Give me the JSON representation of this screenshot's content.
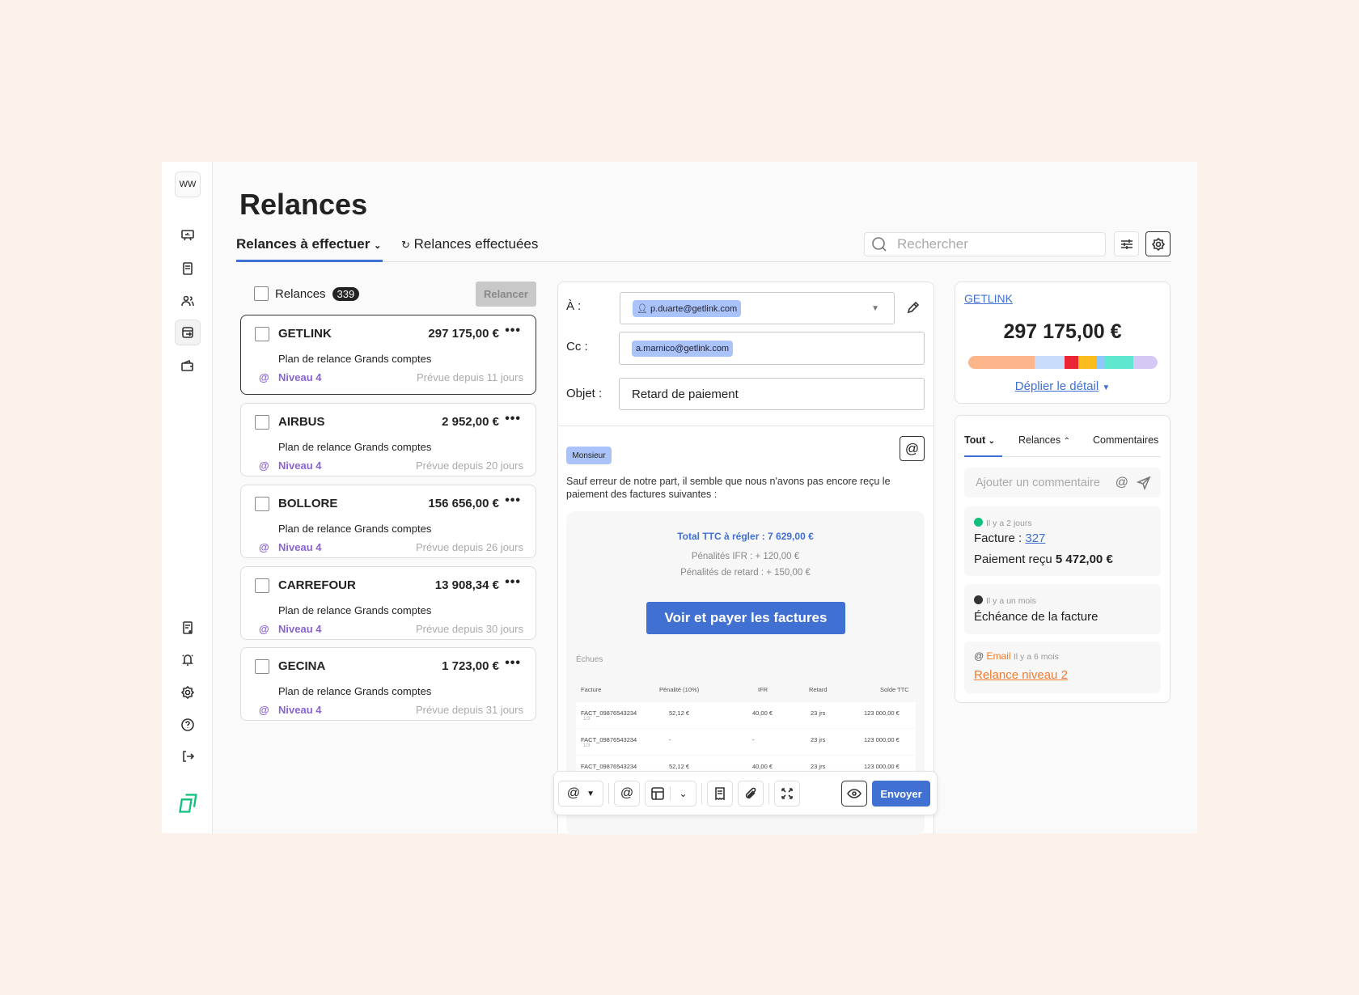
{
  "sidebar": {
    "workspace": "WW",
    "items": [
      "dashboard",
      "invoices",
      "customers",
      "reminders",
      "wallet"
    ],
    "bottom_items": [
      "notes",
      "notifications",
      "settings",
      "help",
      "logout"
    ]
  },
  "header": {
    "title": "Relances",
    "tabs": [
      {
        "label": "Relances à effectuer"
      },
      {
        "label": "Relances effectuées"
      }
    ],
    "search_placeholder": "Rechercher"
  },
  "list": {
    "header_label": "Relances",
    "count": "339",
    "relancer_label": "Relancer",
    "cards": [
      {
        "name": "GETLINK",
        "amount": "297 175,00 €",
        "plan": "Plan de relance Grands comptes",
        "level": "Niveau 4",
        "due": "Prévue depuis 11 jours"
      },
      {
        "name": "AIRBUS",
        "amount": "2 952,00 €",
        "plan": "Plan de relance Grands comptes",
        "level": "Niveau 4",
        "due": "Prévue depuis 20 jours"
      },
      {
        "name": "BOLLORE",
        "amount": "156 656,00 €",
        "plan": "Plan de relance Grands comptes",
        "level": "Niveau 4",
        "due": "Prévue depuis 26 jours"
      },
      {
        "name": "CARREFOUR",
        "amount": "13 908,34 €",
        "plan": "Plan de relance Grands comptes",
        "level": "Niveau 4",
        "due": "Prévue depuis 30 jours"
      },
      {
        "name": "GECINA",
        "amount": "1 723,00 €",
        "plan": "Plan de relance Grands comptes",
        "level": "Niveau 4",
        "due": "Prévue depuis 31 jours"
      }
    ]
  },
  "email": {
    "to_label": "À :",
    "to": "p.duarte@getlink.com",
    "cc_label": "Cc :",
    "cc": "a.marnico@getlink.com",
    "subject_label": "Objet :",
    "subject": "Retard de paiement",
    "salutation": "Monsieur",
    "body": "Sauf erreur de notre part, il semble que nous n'avons pas encore reçu le paiement des factures suivantes :",
    "total": "Total TTC à régler : 7 629,00 €",
    "penalty_ifr": "Pénalités IFR : + 120,00 €",
    "penalty_late": "Pénalités de retard : + 150,00 €",
    "pay_button": "Voir et payer les factures",
    "section": "Échues",
    "columns": [
      "Facture",
      "Pénalité (10%)",
      "IFR",
      "Retard",
      "Solde TTC"
    ],
    "rows": [
      {
        "invoice": "FACT_09876543234",
        "part": "1/3",
        "penalty": "52,12 €",
        "ifr": "40,00 €",
        "delay": "23 jrs",
        "balance": "123 000,00 €"
      },
      {
        "invoice": "FACT_09876543234",
        "part": "1/3",
        "penalty": "-",
        "ifr": "-",
        "delay": "23 jrs",
        "balance": "123 000,00 €"
      },
      {
        "invoice": "FACT_09876543234",
        "part": "",
        "penalty": "52,12 €",
        "ifr": "40,00 €",
        "delay": "23 jrs",
        "balance": "123 000,00 €"
      }
    ],
    "send_label": "Envoyer"
  },
  "summary": {
    "client": "GETLINK",
    "amount": "297 175,00 €",
    "expand_label": "Déplier le détail",
    "bar": [
      {
        "color": "#fdb58c",
        "share": 0.35
      },
      {
        "color": "#c9dcfb",
        "share": 0.16
      },
      {
        "color": "#ec2534",
        "share": 0.07
      },
      {
        "color": "#fbbd1e",
        "share": 0.1
      },
      {
        "color": "#8cc7fb",
        "share": 0.04
      },
      {
        "color": "#5fe8cf",
        "share": 0.15
      },
      {
        "color": "#d4c9f5",
        "share": 0.13
      }
    ]
  },
  "activity": {
    "tabs": [
      "Tout",
      "Relances",
      "Commentaires"
    ],
    "comment_placeholder": "Ajouter un commentaire",
    "items": [
      {
        "time": "Il y a 2 jours",
        "label": "Facture :",
        "invoice": "327",
        "payment_label": "Paiement reçu",
        "payment": "5 472,00 €",
        "dot": "#12c07e"
      },
      {
        "time": "Il y a un mois",
        "text": "Échéance de la facture",
        "dot": "#333333"
      },
      {
        "type": "Email",
        "time": "Il y a 6 mois",
        "link": "Relance niveau 2",
        "color": "#f27b2f"
      }
    ]
  }
}
